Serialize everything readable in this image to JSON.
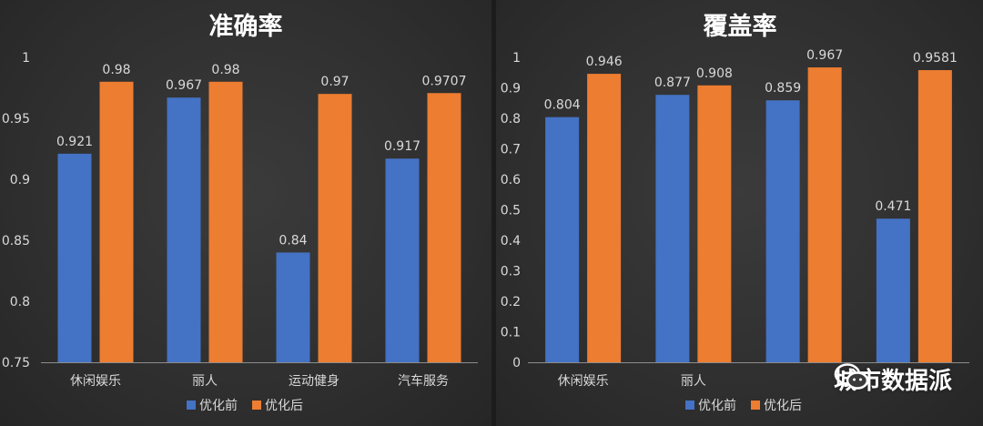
{
  "colors": {
    "before": "#4472c4",
    "after": "#ed7d31",
    "text": "#d9d9d9",
    "title": "#ffffff",
    "axis": "#8c8c8c"
  },
  "legend": {
    "before_label": "优化前",
    "after_label": "优化后"
  },
  "watermark": {
    "text": "城市数据派"
  },
  "chart_data": [
    {
      "type": "bar",
      "title": "准确率",
      "categories": [
        "休闲娱乐",
        "丽人",
        "运动健身",
        "汽车服务"
      ],
      "series": [
        {
          "name": "优化前",
          "values": [
            0.921,
            0.967,
            0.84,
            0.917
          ],
          "labels": [
            "0.921",
            "0.967",
            "0.84",
            "0.917"
          ]
        },
        {
          "name": "优化后",
          "values": [
            0.98,
            0.98,
            0.97,
            0.9707
          ],
          "labels": [
            "0.98",
            "0.98",
            "0.97",
            "0.9707"
          ]
        }
      ],
      "ylim": [
        0.75,
        1
      ],
      "yticks": [
        "0.75",
        "0.8",
        "0.85",
        "0.9",
        "0.95",
        "1"
      ],
      "grid": false,
      "legend_position": "bottom"
    },
    {
      "type": "bar",
      "title": "覆盖率",
      "categories": [
        "休闲娱乐",
        "丽人",
        "",
        ""
      ],
      "series": [
        {
          "name": "优化前",
          "values": [
            0.804,
            0.877,
            0.859,
            0.471
          ],
          "labels": [
            "0.804",
            "0.877",
            "0.859",
            "0.471"
          ]
        },
        {
          "name": "优化后",
          "values": [
            0.946,
            0.908,
            0.967,
            0.9581
          ],
          "labels": [
            "0.946",
            "0.908",
            "0.967",
            "0.9581"
          ]
        }
      ],
      "ylim": [
        0,
        1
      ],
      "yticks": [
        "0",
        "0.1",
        "0.2",
        "0.3",
        "0.4",
        "0.5",
        "0.6",
        "0.7",
        "0.8",
        "0.9",
        "1"
      ],
      "grid": false,
      "legend_position": "bottom"
    }
  ]
}
